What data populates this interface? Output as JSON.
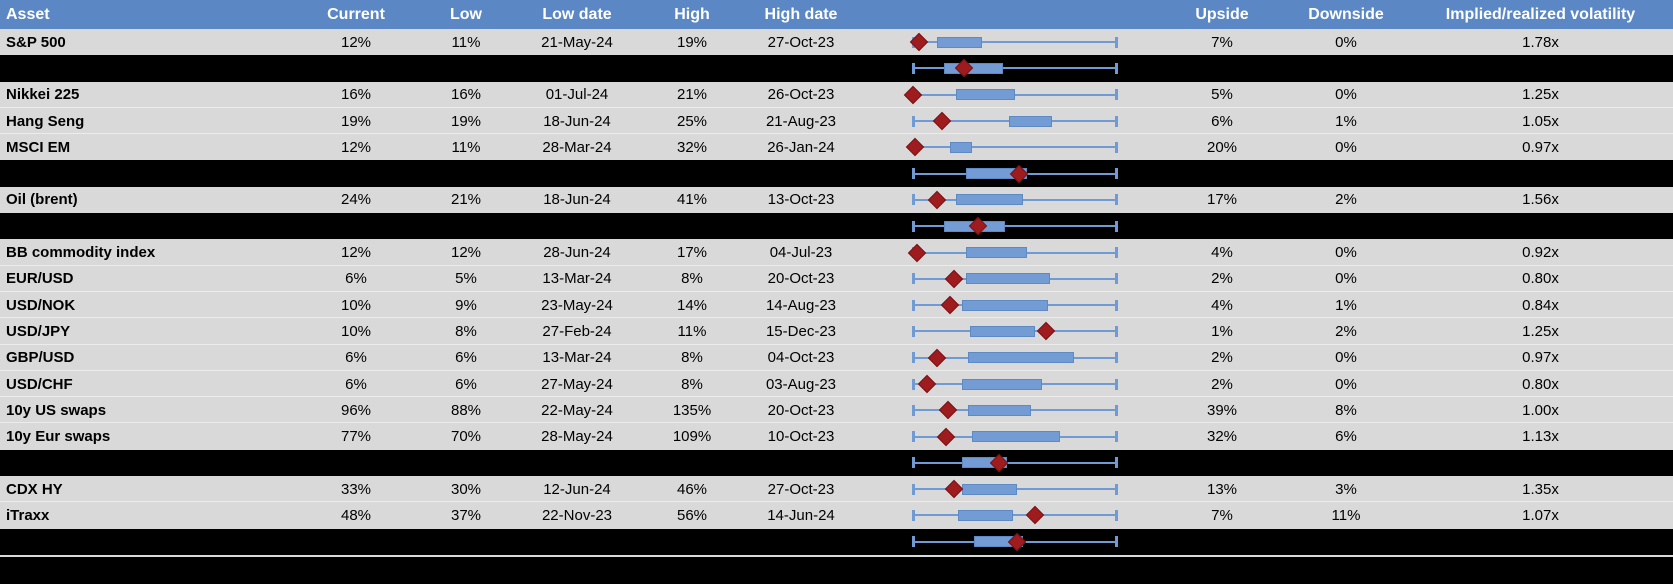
{
  "colors": {
    "header_bg": "#5b87c5",
    "row_bg": "#d9d9d9",
    "separator_bg": "#000000",
    "whisker_blue": "#6f9ad3",
    "box_fill": "#739cd4",
    "box_border": "#5d89c4",
    "marker_red": "#9e1b1e",
    "header_text": "#ffffff",
    "body_text": "#000000"
  },
  "chart_data": {
    "type": "table",
    "title": "Implied/realized volatility",
    "legend_position": "none",
    "grid": false,
    "plot_axis_note": "Each row shows a min-max whisker (0-100% of 1y range), an inter-quartile box and a red diamond marking the current level; percentages below are positions across the whisker span.",
    "columns": [
      {
        "key": "asset",
        "label": "Asset"
      },
      {
        "key": "current",
        "label": "Current"
      },
      {
        "key": "low",
        "label": "Low"
      },
      {
        "key": "low_date",
        "label": "Low date"
      },
      {
        "key": "high",
        "label": "High"
      },
      {
        "key": "high_date",
        "label": "High date"
      },
      {
        "key": "plot",
        "label": ""
      },
      {
        "key": "upside",
        "label": "Upside"
      },
      {
        "key": "downside",
        "label": "Downside"
      },
      {
        "key": "impl_real",
        "label": "Implied/realized volatility"
      }
    ],
    "rows": [
      {
        "type": "asset",
        "cells": {
          "asset": "S&P 500",
          "current": "12%",
          "low": "11%",
          "low_date": "21-May-24",
          "high": "19%",
          "high_date": "27-Oct-23",
          "upside": "7%",
          "downside": "0%",
          "impl_real": "1.78x"
        },
        "range_plot": {
          "whisker_pct": [
            0,
            100
          ],
          "box_pct": [
            12,
            34
          ],
          "marker_pct": 3
        }
      },
      {
        "type": "separator",
        "range_plot": {
          "whisker_pct": [
            0,
            100
          ],
          "box_pct": [
            15,
            44
          ],
          "marker_pct": 25
        }
      },
      {
        "type": "asset",
        "cells": {
          "asset": "Nikkei 225",
          "current": "16%",
          "low": "16%",
          "low_date": "01-Jul-24",
          "high": "21%",
          "high_date": "26-Oct-23",
          "upside": "5%",
          "downside": "0%",
          "impl_real": "1.25x"
        },
        "range_plot": {
          "whisker_pct": [
            0,
            100
          ],
          "box_pct": [
            21,
            50
          ],
          "marker_pct": 0
        }
      },
      {
        "type": "asset",
        "cells": {
          "asset": "Hang Seng",
          "current": "19%",
          "low": "19%",
          "low_date": "18-Jun-24",
          "high": "25%",
          "high_date": "21-Aug-23",
          "upside": "6%",
          "downside": "1%",
          "impl_real": "1.05x"
        },
        "range_plot": {
          "whisker_pct": [
            0,
            100
          ],
          "box_pct": [
            47,
            68
          ],
          "marker_pct": 14
        }
      },
      {
        "type": "asset",
        "cells": {
          "asset": "MSCI EM",
          "current": "12%",
          "low": "11%",
          "low_date": "28-Mar-24",
          "high": "32%",
          "high_date": "26-Jan-24",
          "upside": "20%",
          "downside": "0%",
          "impl_real": "0.97x"
        },
        "range_plot": {
          "whisker_pct": [
            0,
            100
          ],
          "box_pct": [
            18,
            29
          ],
          "marker_pct": 1
        }
      },
      {
        "type": "separator",
        "range_plot": {
          "whisker_pct": [
            0,
            100
          ],
          "box_pct": [
            26,
            56
          ],
          "marker_pct": 52
        }
      },
      {
        "type": "asset",
        "cells": {
          "asset": "Oil (brent)",
          "current": "24%",
          "low": "21%",
          "low_date": "18-Jun-24",
          "high": "41%",
          "high_date": "13-Oct-23",
          "upside": "17%",
          "downside": "2%",
          "impl_real": "1.56x"
        },
        "range_plot": {
          "whisker_pct": [
            0,
            100
          ],
          "box_pct": [
            21,
            54
          ],
          "marker_pct": 12
        }
      },
      {
        "type": "separator",
        "range_plot": {
          "whisker_pct": [
            0,
            100
          ],
          "box_pct": [
            15,
            45
          ],
          "marker_pct": 32
        }
      },
      {
        "type": "asset",
        "cells": {
          "asset": "BB commodity index",
          "current": "12%",
          "low": "12%",
          "low_date": "28-Jun-24",
          "high": "17%",
          "high_date": "04-Jul-23",
          "upside": "4%",
          "downside": "0%",
          "impl_real": "0.92x"
        },
        "range_plot": {
          "whisker_pct": [
            0,
            100
          ],
          "box_pct": [
            26,
            56
          ],
          "marker_pct": 2
        }
      },
      {
        "type": "asset",
        "cells": {
          "asset": "EUR/USD",
          "current": "6%",
          "low": "5%",
          "low_date": "13-Mar-24",
          "high": "8%",
          "high_date": "20-Oct-23",
          "upside": "2%",
          "downside": "0%",
          "impl_real": "0.80x"
        },
        "range_plot": {
          "whisker_pct": [
            0,
            100
          ],
          "box_pct": [
            26,
            67
          ],
          "marker_pct": 20
        }
      },
      {
        "type": "asset",
        "cells": {
          "asset": "USD/NOK",
          "current": "10%",
          "low": "9%",
          "low_date": "23-May-24",
          "high": "14%",
          "high_date": "14-Aug-23",
          "upside": "4%",
          "downside": "1%",
          "impl_real": "0.84x"
        },
        "range_plot": {
          "whisker_pct": [
            0,
            100
          ],
          "box_pct": [
            24,
            66
          ],
          "marker_pct": 18
        }
      },
      {
        "type": "asset",
        "cells": {
          "asset": "USD/JPY",
          "current": "10%",
          "low": "8%",
          "low_date": "27-Feb-24",
          "high": "11%",
          "high_date": "15-Dec-23",
          "upside": "1%",
          "downside": "2%",
          "impl_real": "1.25x"
        },
        "range_plot": {
          "whisker_pct": [
            0,
            100
          ],
          "box_pct": [
            28,
            60
          ],
          "marker_pct": 65
        }
      },
      {
        "type": "asset",
        "cells": {
          "asset": "GBP/USD",
          "current": "6%",
          "low": "6%",
          "low_date": "13-Mar-24",
          "high": "8%",
          "high_date": "04-Oct-23",
          "upside": "2%",
          "downside": "0%",
          "impl_real": "0.97x"
        },
        "range_plot": {
          "whisker_pct": [
            0,
            100
          ],
          "box_pct": [
            27,
            79
          ],
          "marker_pct": 12
        }
      },
      {
        "type": "asset",
        "cells": {
          "asset": "USD/CHF",
          "current": "6%",
          "low": "6%",
          "low_date": "27-May-24",
          "high": "8%",
          "high_date": "03-Aug-23",
          "upside": "2%",
          "downside": "0%",
          "impl_real": "0.80x"
        },
        "range_plot": {
          "whisker_pct": [
            0,
            100
          ],
          "box_pct": [
            24,
            63
          ],
          "marker_pct": 7
        }
      },
      {
        "type": "asset",
        "cells": {
          "asset": "10y US swaps",
          "current": "96%",
          "low": "88%",
          "low_date": "22-May-24",
          "high": "135%",
          "high_date": "20-Oct-23",
          "upside": "39%",
          "downside": "8%",
          "impl_real": "1.00x"
        },
        "range_plot": {
          "whisker_pct": [
            0,
            100
          ],
          "box_pct": [
            27,
            58
          ],
          "marker_pct": 17
        }
      },
      {
        "type": "asset",
        "cells": {
          "asset": "10y Eur swaps",
          "current": "77%",
          "low": "70%",
          "low_date": "28-May-24",
          "high": "109%",
          "high_date": "10-Oct-23",
          "upside": "32%",
          "downside": "6%",
          "impl_real": "1.13x"
        },
        "range_plot": {
          "whisker_pct": [
            0,
            100
          ],
          "box_pct": [
            29,
            72
          ],
          "marker_pct": 16
        }
      },
      {
        "type": "separator",
        "range_plot": {
          "whisker_pct": [
            0,
            100
          ],
          "box_pct": [
            24,
            46
          ],
          "marker_pct": 42
        }
      },
      {
        "type": "asset",
        "cells": {
          "asset": "CDX HY",
          "current": "33%",
          "low": "30%",
          "low_date": "12-Jun-24",
          "high": "46%",
          "high_date": "27-Oct-23",
          "upside": "13%",
          "downside": "3%",
          "impl_real": "1.35x"
        },
        "range_plot": {
          "whisker_pct": [
            0,
            100
          ],
          "box_pct": [
            24,
            51
          ],
          "marker_pct": 20
        }
      },
      {
        "type": "asset",
        "cells": {
          "asset": "iTraxx",
          "current": "48%",
          "low": "37%",
          "low_date": "22-Nov-23",
          "high": "56%",
          "high_date": "14-Jun-24",
          "upside": "7%",
          "downside": "11%",
          "impl_real": "1.07x"
        },
        "range_plot": {
          "whisker_pct": [
            0,
            100
          ],
          "box_pct": [
            22,
            49
          ],
          "marker_pct": 60
        }
      },
      {
        "type": "separator",
        "range_plot": {
          "whisker_pct": [
            0,
            100
          ],
          "box_pct": [
            30,
            54
          ],
          "marker_pct": 51
        }
      }
    ]
  }
}
